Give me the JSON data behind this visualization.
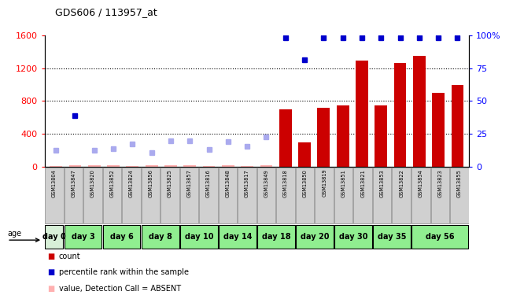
{
  "title": "GDS606 / 113957_at",
  "samples": [
    "GSM13804",
    "GSM13847",
    "GSM13820",
    "GSM13852",
    "GSM13824",
    "GSM13856",
    "GSM13825",
    "GSM13857",
    "GSM13816",
    "GSM13848",
    "GSM13817",
    "GSM13849",
    "GSM13818",
    "GSM13850",
    "GSM13819",
    "GSM13851",
    "GSM13821",
    "GSM13853",
    "GSM13822",
    "GSM13854",
    "GSM13823",
    "GSM13855"
  ],
  "day_spans": [
    {
      "label": "day 0",
      "start": 0,
      "end": 1,
      "color": "#d8f0d8"
    },
    {
      "label": "day 3",
      "start": 1,
      "end": 3,
      "color": "#90ee90"
    },
    {
      "label": "day 6",
      "start": 3,
      "end": 5,
      "color": "#90ee90"
    },
    {
      "label": "day 8",
      "start": 5,
      "end": 7,
      "color": "#90ee90"
    },
    {
      "label": "day 10",
      "start": 7,
      "end": 9,
      "color": "#90ee90"
    },
    {
      "label": "day 14",
      "start": 9,
      "end": 11,
      "color": "#90ee90"
    },
    {
      "label": "day 18",
      "start": 11,
      "end": 13,
      "color": "#90ee90"
    },
    {
      "label": "day 20",
      "start": 13,
      "end": 15,
      "color": "#90ee90"
    },
    {
      "label": "day 30",
      "start": 15,
      "end": 17,
      "color": "#90ee90"
    },
    {
      "label": "day 35",
      "start": 17,
      "end": 19,
      "color": "#90ee90"
    },
    {
      "label": "day 56",
      "start": 19,
      "end": 22,
      "color": "#90ee90"
    }
  ],
  "count_values": [
    10,
    20,
    15,
    18,
    12,
    22,
    16,
    14,
    10,
    18,
    12,
    20,
    700,
    300,
    720,
    750,
    1290,
    750,
    1260,
    1350,
    900,
    1000
  ],
  "absent_count": [
    true,
    true,
    true,
    true,
    true,
    true,
    true,
    true,
    true,
    true,
    true,
    true,
    false,
    false,
    false,
    false,
    false,
    false,
    false,
    false,
    false,
    false
  ],
  "rank_values": [
    200,
    620,
    200,
    220,
    280,
    175,
    320,
    320,
    210,
    310,
    250,
    360,
    1570,
    1300,
    1570,
    1570,
    1570,
    1570,
    1570,
    1570,
    1570,
    1570
  ],
  "rank_absent": [
    true,
    false,
    true,
    true,
    true,
    true,
    true,
    true,
    true,
    true,
    true,
    true,
    false,
    false,
    false,
    false,
    false,
    false,
    false,
    false,
    false,
    false
  ],
  "ylim_left": [
    0,
    1600
  ],
  "ylim_right": [
    0,
    100
  ],
  "yticks_left": [
    0,
    400,
    800,
    1200,
    1600
  ],
  "yticks_right": [
    0,
    25,
    50,
    75,
    100
  ],
  "bar_color": "#cc0000",
  "absent_bar_color": "#ffb0b0",
  "rank_present_color": "#0000cc",
  "rank_absent_color": "#aaaaee",
  "sample_bg": "#d0d0d0",
  "age_label": "age",
  "legend_items": [
    {
      "color": "#cc0000",
      "label": "count"
    },
    {
      "color": "#0000cc",
      "label": "percentile rank within the sample"
    },
    {
      "color": "#ffb0b0",
      "label": "value, Detection Call = ABSENT"
    },
    {
      "color": "#aaaaee",
      "label": "rank, Detection Call = ABSENT"
    }
  ]
}
